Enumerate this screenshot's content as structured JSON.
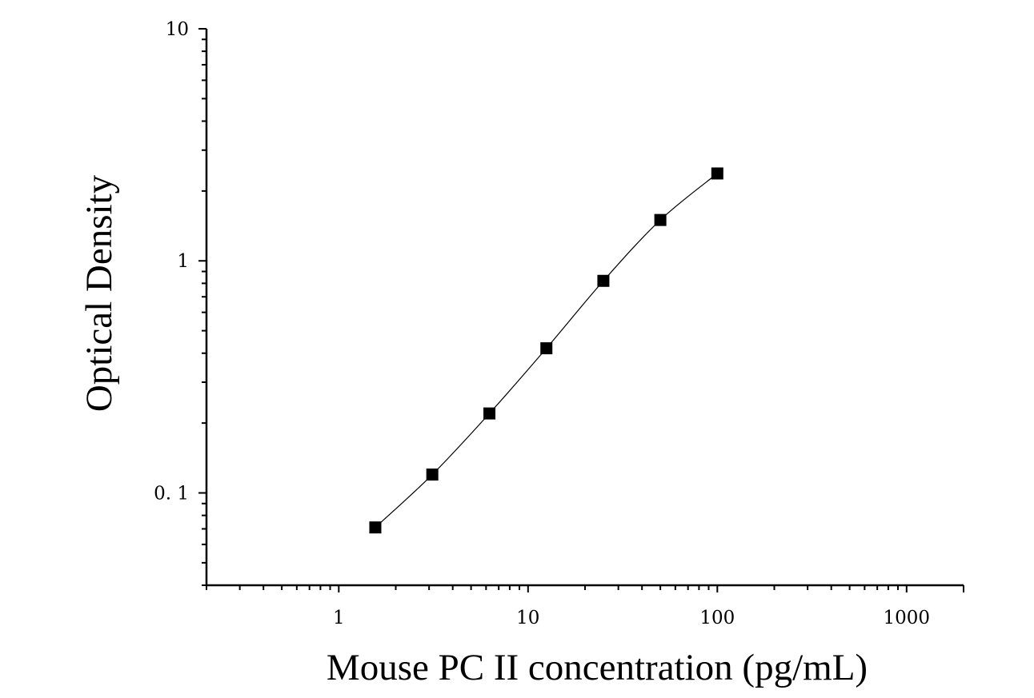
{
  "chart_data": {
    "type": "scatter",
    "title": "",
    "xlabel": "Mouse PC II concentration (pg/mL)",
    "ylabel": "Optical Density",
    "x_scale": "log",
    "y_scale": "log",
    "xlim": [
      0.2,
      2000
    ],
    "ylim": [
      0.04,
      10
    ],
    "x_ticks": [
      {
        "value": 1,
        "label": "1"
      },
      {
        "value": 10,
        "label": "10"
      },
      {
        "value": 100,
        "label": "100"
      },
      {
        "value": 1000,
        "label": "1000"
      }
    ],
    "y_ticks": [
      {
        "value": 0.1,
        "label": "0. 1"
      },
      {
        "value": 1,
        "label": "1"
      },
      {
        "value": 10,
        "label": "10"
      }
    ],
    "grid": false,
    "legend": "none",
    "series": [
      {
        "marker": "square",
        "x": [
          1.56,
          3.12,
          6.25,
          12.5,
          25,
          50,
          100
        ],
        "y": [
          0.071,
          0.12,
          0.22,
          0.42,
          0.82,
          1.5,
          2.38
        ]
      }
    ],
    "fit_curve": true
  }
}
